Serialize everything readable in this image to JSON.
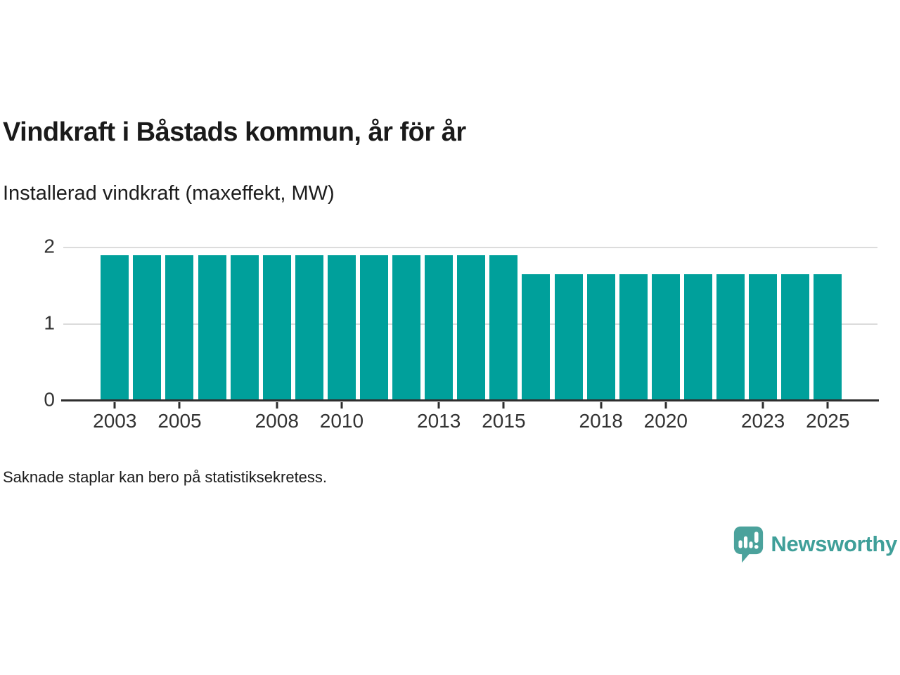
{
  "header": {
    "title": "Vindkraft i Båstads kommun, år för år",
    "subtitle": "Installerad vindkraft (maxeffekt, MW)"
  },
  "chart_data": {
    "type": "bar",
    "title": "Vindkraft i Båstads kommun, år för år",
    "subtitle": "Installerad vindkraft (maxeffekt, MW)",
    "unit": "MW",
    "categories": [
      2003,
      2004,
      2005,
      2006,
      2007,
      2008,
      2009,
      2010,
      2011,
      2012,
      2013,
      2014,
      2015,
      2016,
      2017,
      2018,
      2019,
      2020,
      2021,
      2022,
      2023,
      2024,
      2025
    ],
    "values": [
      1.9,
      1.9,
      1.9,
      1.9,
      1.9,
      1.9,
      1.9,
      1.9,
      1.9,
      1.9,
      1.9,
      1.9,
      1.9,
      1.65,
      1.65,
      1.65,
      1.65,
      1.65,
      1.65,
      1.65,
      1.65,
      1.65,
      1.65
    ],
    "ylim": [
      0,
      2
    ],
    "yticks": [
      0,
      1,
      2
    ],
    "x_tick_labels": [
      "2003",
      "2005",
      "2008",
      "2010",
      "2013",
      "2015",
      "2018",
      "2020",
      "2023",
      "2025"
    ],
    "grid": "horizontal",
    "legend": "none",
    "bar_color": "#00a09b"
  },
  "footer": {
    "note": "Saknade staplar kan bero på statistiksekretess."
  },
  "brand": {
    "name": "Newsworthy"
  },
  "colors": {
    "bar": "#00a09b",
    "title_text": "#1a1a1a",
    "axis_text": "#333333",
    "gridline": "#dcdcdc",
    "axis_line": "#2e2e2e",
    "logo_fill": "#4ba29c",
    "wordmark": "#3f9f99"
  }
}
